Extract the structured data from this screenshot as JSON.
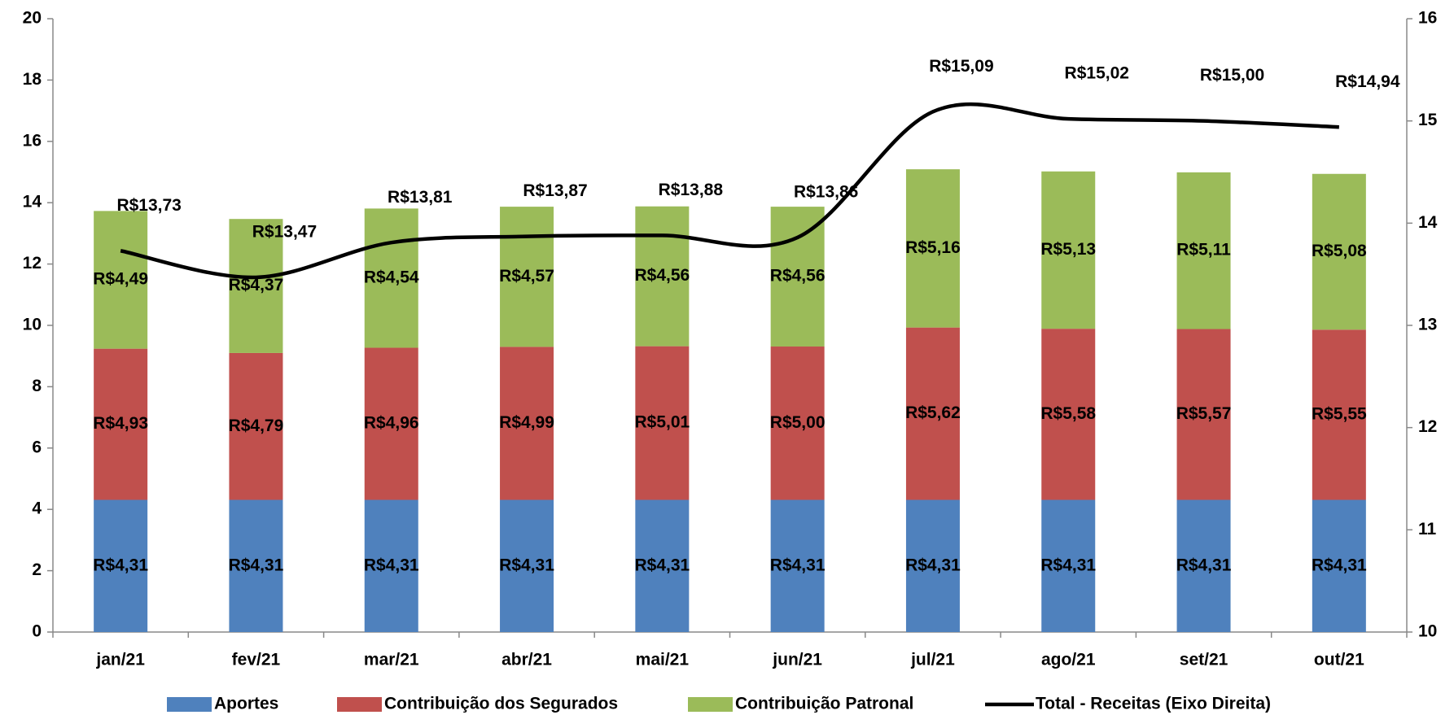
{
  "chart_data": {
    "type": "stacked_bar_line",
    "categories": [
      "jan/21",
      "fev/21",
      "mar/21",
      "abr/21",
      "mai/21",
      "jun/21",
      "jul/21",
      "ago/21",
      "set/21",
      "out/21"
    ],
    "series": [
      {
        "name": "Aportes",
        "color": "#4f81bd",
        "values": [
          4.31,
          4.31,
          4.31,
          4.31,
          4.31,
          4.31,
          4.31,
          4.31,
          4.31,
          4.31
        ],
        "value_labels": [
          "R$4,31",
          "R$4,31",
          "R$4,31",
          "R$4,31",
          "R$4,31",
          "R$4,31",
          "R$4,31",
          "R$4,31",
          "R$4,31",
          "R$4,31"
        ]
      },
      {
        "name": "Contribuição dos Segurados",
        "color": "#c0504d",
        "values": [
          4.93,
          4.79,
          4.96,
          4.99,
          5.01,
          5.0,
          5.62,
          5.58,
          5.57,
          5.55
        ],
        "value_labels": [
          "R$4,93",
          "R$4,79",
          "R$4,96",
          "R$4,99",
          "R$5,01",
          "R$5,00",
          "R$5,62",
          "R$5,58",
          "R$5,57",
          "R$5,55"
        ]
      },
      {
        "name": "Contribuição Patronal",
        "color": "#9bbb59",
        "values": [
          4.49,
          4.37,
          4.54,
          4.57,
          4.56,
          4.56,
          5.16,
          5.13,
          5.11,
          5.08
        ],
        "value_labels": [
          "R$4,49",
          "R$4,37",
          "R$4,54",
          "R$4,57",
          "R$4,56",
          "R$4,56",
          "R$5,16",
          "R$5,13",
          "R$5,11",
          "R$5,08"
        ]
      },
      {
        "name": "Total - Receitas (Eixo Direita)",
        "color": "#000000",
        "axis": "y2",
        "line": true,
        "values": [
          13.73,
          13.47,
          13.81,
          13.87,
          13.88,
          13.86,
          15.09,
          15.02,
          15.0,
          14.94
        ],
        "value_labels": [
          "R$13,73",
          "R$13,47",
          "R$13,81",
          "R$13,87",
          "R$13,88",
          "R$13,86",
          "R$15,09",
          "R$15,02",
          "R$15,00",
          "R$14,94"
        ]
      }
    ],
    "ylim": [
      0,
      20
    ],
    "yticks": [
      0,
      2,
      4,
      6,
      8,
      10,
      12,
      14,
      16,
      18,
      20
    ],
    "y2lim": [
      10,
      16
    ],
    "y2ticks": [
      10,
      11,
      12,
      13,
      14,
      15,
      16
    ],
    "legend": "bottom"
  }
}
